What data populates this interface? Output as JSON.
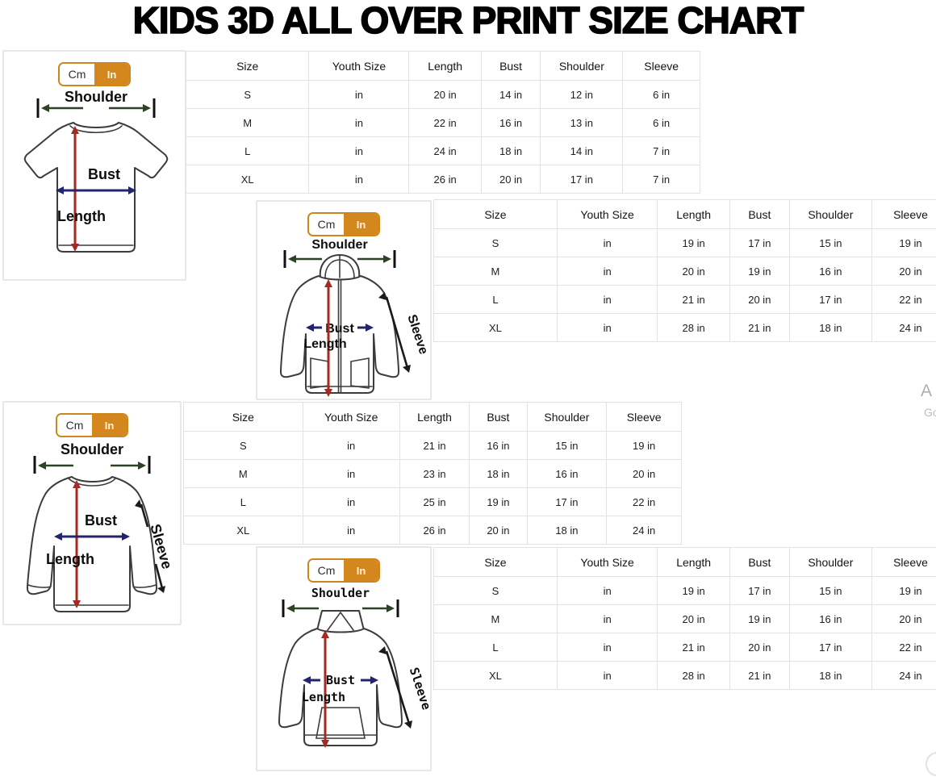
{
  "title": "KIDS 3D ALL OVER PRINT SIZE CHART",
  "unit_toggle": {
    "cm_label": "Cm",
    "in_label": "In"
  },
  "columns": [
    "Size",
    "Youth Size",
    "Length",
    "Bust",
    "Shoulder",
    "Sleeve"
  ],
  "diagram_labels": {
    "shoulder": "Shoulder",
    "bust": "Bust",
    "length": "Length",
    "sleeve": "Sleeve"
  },
  "tables": {
    "tshirt": {
      "garment": "kids t-shirt",
      "rows": [
        [
          "S",
          "in",
          "20 in",
          "14 in",
          "12 in",
          "6 in"
        ],
        [
          "M",
          "in",
          "22 in",
          "16 in",
          "13 in",
          "6 in"
        ],
        [
          "L",
          "in",
          "24 in",
          "18 in",
          "14 in",
          "7 in"
        ],
        [
          "XL",
          "in",
          "26 in",
          "20 in",
          "17 in",
          "7 in"
        ]
      ]
    },
    "zip_hoodie": {
      "garment": "kids zip hoodie",
      "rows": [
        [
          "S",
          "in",
          "19 in",
          "17 in",
          "15 in",
          "19 in"
        ],
        [
          "M",
          "in",
          "20 in",
          "19 in",
          "16 in",
          "20 in"
        ],
        [
          "L",
          "in",
          "21 in",
          "20 in",
          "17 in",
          "22 in"
        ],
        [
          "XL",
          "in",
          "28 in",
          "21 in",
          "18 in",
          "24 in"
        ]
      ]
    },
    "long_sleeve": {
      "garment": "kids long sleeve shirt",
      "rows": [
        [
          "S",
          "in",
          "21 in",
          "16 in",
          "15 in",
          "19 in"
        ],
        [
          "M",
          "in",
          "23 in",
          "18 in",
          "16 in",
          "20 in"
        ],
        [
          "L",
          "in",
          "25 in",
          "19 in",
          "17 in",
          "22 in"
        ],
        [
          "XL",
          "in",
          "26 in",
          "20 in",
          "18 in",
          "24 in"
        ]
      ]
    },
    "pullover_hoodie": {
      "garment": "kids pullover hoodie",
      "rows": [
        [
          "S",
          "in",
          "19 in",
          "17 in",
          "15 in",
          "19 in"
        ],
        [
          "M",
          "in",
          "20 in",
          "19 in",
          "16 in",
          "20 in"
        ],
        [
          "L",
          "in",
          "21 in",
          "20 in",
          "17 in",
          "22 in"
        ],
        [
          "XL",
          "in",
          "28 in",
          "21 in",
          "18 in",
          "24 in"
        ]
      ]
    }
  },
  "colors": {
    "accent_orange": "#d4871c",
    "length_arrow": "#a52a21",
    "bust_arrow": "#24246e",
    "shoulder_arrow": "#2c4425",
    "sleeve_arrow": "#1a1a1a"
  },
  "edge_artifacts": {
    "top_letter": "A",
    "bottom_letters": "Go"
  }
}
